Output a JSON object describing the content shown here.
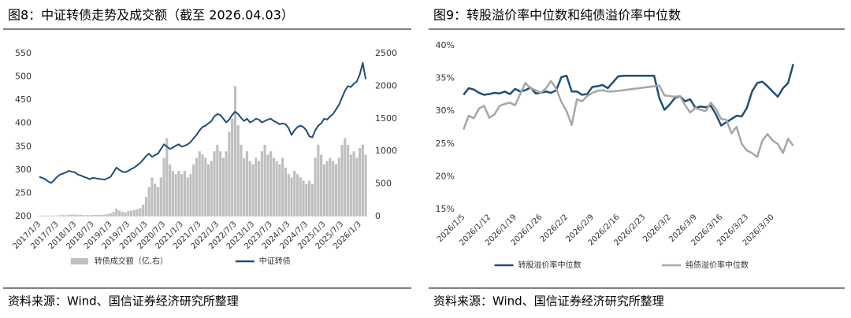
{
  "chart_data": [
    {
      "type": "combo",
      "title": "图8：中证转债走势及成交额（截至 2026.04.03）",
      "source": "资料来源：Wind、国信证券经济研究所整理",
      "legend": "bottom",
      "grid": false,
      "categories": [
        "2017/1/3",
        null,
        null,
        null,
        null,
        null,
        "2017/7/3",
        null,
        null,
        null,
        null,
        null,
        "2018/1/3",
        null,
        null,
        null,
        null,
        null,
        "2018/7/3",
        null,
        null,
        null,
        null,
        null,
        "2019/1/3",
        null,
        null,
        null,
        null,
        null,
        "2019/7/3",
        null,
        null,
        null,
        null,
        null,
        "2020/1/3",
        null,
        null,
        null,
        null,
        null,
        "2020/7/3",
        null,
        null,
        null,
        null,
        null,
        "2021/1/3",
        null,
        null,
        null,
        null,
        null,
        "2021/7/3",
        null,
        null,
        null,
        null,
        null,
        "2022/1/3",
        null,
        null,
        null,
        null,
        null,
        "2022/7/3",
        null,
        null,
        null,
        null,
        null,
        "2023/1/3",
        null,
        null,
        null,
        null,
        null,
        "2023/7/3",
        null,
        null,
        null,
        null,
        null,
        "2024/1/3",
        null,
        null,
        null,
        null,
        null,
        "2024/7/3",
        null,
        null,
        null,
        null,
        null,
        "2025/1/3",
        null,
        null,
        null,
        null,
        null,
        "2025/7/3",
        null,
        null,
        null,
        null,
        null,
        "2026/1/3",
        null,
        null
      ],
      "ylim": [
        200,
        550
      ],
      "yticks": [
        200,
        250,
        300,
        350,
        400,
        450,
        500,
        550
      ],
      "y2lim": [
        0,
        2500
      ],
      "y2ticks": [
        0,
        500,
        1000,
        1500,
        2000,
        2500
      ],
      "series": [
        {
          "name": "转债成交额（亿,右）",
          "type": "bar",
          "axis": "y2",
          "color": "#bfbfbf",
          "values": [
            10,
            15,
            10,
            10,
            12,
            15,
            15,
            20,
            20,
            20,
            25,
            30,
            30,
            25,
            25,
            20,
            20,
            20,
            25,
            25,
            25,
            25,
            30,
            35,
            50,
            70,
            120,
            90,
            70,
            60,
            80,
            90,
            100,
            110,
            130,
            180,
            300,
            450,
            600,
            500,
            450,
            600,
            900,
            1200,
            800,
            700,
            650,
            700,
            650,
            700,
            600,
            650,
            800,
            900,
            1000,
            950,
            900,
            800,
            850,
            1000,
            1100,
            1000,
            900,
            1000,
            1300,
            1500,
            2000,
            1400,
            1100,
            900,
            1000,
            850,
            800,
            900,
            850,
            1000,
            1100,
            950,
            1000,
            900,
            850,
            800,
            900,
            750,
            650,
            600,
            700,
            650,
            600,
            550,
            500,
            550,
            500,
            900,
            1100,
            950,
            800,
            850,
            900,
            850,
            800,
            900,
            1100,
            1200,
            1100,
            950,
            1000,
            900,
            1050,
            1100,
            950
          ]
        },
        {
          "name": "中证转债",
          "type": "line",
          "color": "#1f4e79",
          "values": [
            285,
            283,
            280,
            275,
            272,
            278,
            285,
            290,
            292,
            295,
            298,
            296,
            295,
            290,
            288,
            285,
            283,
            280,
            283,
            282,
            281,
            280,
            279,
            282,
            285,
            295,
            305,
            300,
            296,
            295,
            298,
            302,
            305,
            310,
            315,
            322,
            330,
            335,
            328,
            332,
            335,
            345,
            355,
            350,
            345,
            348,
            352,
            355,
            350,
            352,
            355,
            360,
            368,
            375,
            385,
            392,
            395,
            400,
            405,
            415,
            420,
            418,
            410,
            402,
            408,
            418,
            425,
            420,
            412,
            405,
            410,
            402,
            405,
            410,
            408,
            402,
            405,
            408,
            410,
            405,
            402,
            398,
            400,
            398,
            390,
            375,
            385,
            392,
            395,
            392,
            385,
            372,
            370,
            385,
            395,
            400,
            410,
            408,
            415,
            420,
            430,
            440,
            455,
            470,
            480,
            478,
            485,
            490,
            505,
            530,
            495
          ]
        }
      ]
    },
    {
      "type": "line",
      "title": "图9：转股溢价率中位数和纯债溢价率中位数",
      "source": "资料来源：Wind、国信证券经济研究所整理",
      "legend": "bottom",
      "grid": false,
      "categories": [
        "2026/1/5",
        null,
        null,
        null,
        null,
        "2026/1/12",
        null,
        null,
        null,
        null,
        "2026/1/19",
        null,
        null,
        null,
        null,
        "2026/1/26",
        null,
        null,
        null,
        null,
        "2026/2/2",
        null,
        null,
        null,
        null,
        "2026/2/9",
        null,
        null,
        null,
        null,
        "2026/2/16",
        null,
        null,
        null,
        null,
        "2026/2/23",
        null,
        null,
        null,
        null,
        "2026/3/2",
        null,
        null,
        null,
        null,
        "2026/3/9",
        null,
        null,
        null,
        null,
        "2026/3/16",
        null,
        null,
        null,
        null,
        "2026/3/23",
        null,
        null,
        null,
        null,
        "2026/3/30",
        null,
        null,
        null,
        null
      ],
      "ylim": [
        15,
        40
      ],
      "yticks": [
        {
          "value": 15,
          "label": "15%"
        },
        {
          "value": 20,
          "label": "20%"
        },
        {
          "value": 25,
          "label": "25%"
        },
        {
          "value": 30,
          "label": "30%"
        },
        {
          "value": 35,
          "label": "35%"
        },
        {
          "value": 40,
          "label": "40%"
        }
      ],
      "series": [
        {
          "name": "转股溢价率中位数",
          "color": "#1f4e79",
          "values": [
            32.5,
            33.5,
            33.3,
            32.8,
            32.5,
            32.6,
            32.8,
            32.7,
            33.0,
            32.6,
            33.4,
            33.0,
            33.2,
            33.6,
            32.7,
            32.8,
            33.0,
            32.8,
            33.2,
            35.2,
            35.4,
            33.0,
            33.0,
            32.5,
            32.6,
            33.7,
            33.8,
            34.0,
            33.5,
            34.4,
            35.3,
            35.4,
            35.4,
            35.4,
            35.4,
            35.4,
            35.4,
            35.4,
            32.0,
            30.2,
            31.0,
            32.0,
            32.3,
            31.5,
            31.8,
            30.5,
            30.7,
            30.6,
            30.8,
            29.5,
            27.8,
            28.3,
            28.8,
            29.3,
            29.2,
            30.5,
            33.0,
            34.3,
            34.5,
            33.8,
            33.0,
            32.2,
            33.5,
            34.3,
            37.2
          ]
        },
        {
          "name": "纯债溢价率中位数",
          "color": "#a6a6a6",
          "values": [
            27.2,
            29.3,
            28.9,
            30.4,
            30.8,
            29.0,
            29.5,
            30.8,
            31.1,
            31.3,
            30.9,
            32.6,
            34.3,
            33.5,
            33.2,
            32.8,
            33.5,
            34.6,
            33.4,
            31.4,
            30.0,
            27.9,
            31.8,
            31.5,
            32.3,
            32.8,
            33.1,
            33.2,
            33.0,
            33.0,
            33.1,
            33.2,
            33.3,
            33.4,
            33.5,
            33.6,
            33.7,
            33.8,
            33.9,
            32.4,
            32.3,
            32.2,
            32.3,
            30.9,
            29.8,
            30.5,
            30.2,
            30.0,
            31.3,
            30.3,
            28.8,
            28.7,
            26.6,
            27.6,
            25.0,
            24.0,
            23.6,
            23.0,
            25.5,
            26.5,
            25.5,
            25.0,
            23.6,
            25.8,
            24.7
          ]
        }
      ]
    }
  ]
}
